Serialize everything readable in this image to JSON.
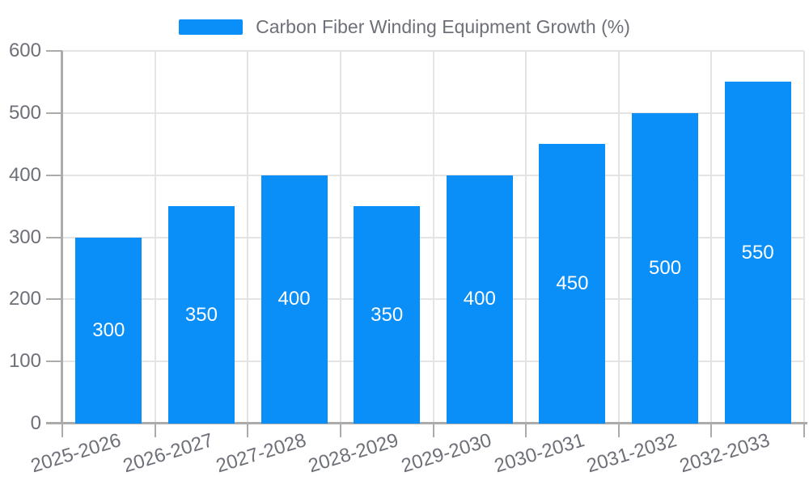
{
  "chart_data": {
    "type": "bar",
    "title": "Carbon Fiber Winding Equipment Growth (%)",
    "categories": [
      "2025-2026",
      "2026-2027",
      "2027-2028",
      "2028-2029",
      "2029-2030",
      "2030-2031",
      "2031-2032",
      "2032-2033"
    ],
    "series": [
      {
        "name": "Carbon Fiber Winding Equipment Growth (%)",
        "values": [
          300,
          350,
          400,
          350,
          400,
          450,
          500,
          550
        ]
      }
    ],
    "value_labels": [
      "300",
      "350",
      "400",
      "350",
      "400",
      "450",
      "500",
      "550"
    ],
    "xlabel": "",
    "ylabel": "",
    "ylim": [
      0,
      600
    ],
    "yticks": [
      0,
      100,
      200,
      300,
      400,
      500,
      600
    ],
    "grid": true,
    "vertical_gridlines": true,
    "legend_position": "top-center",
    "bar_value_labels_inside": true
  },
  "legend": {
    "label": "Carbon Fiber Winding Equipment Growth (%)"
  },
  "colors": {
    "bar": "#0a8ef8",
    "gridline": "#e4e4e4",
    "axis_line": "#ababab",
    "axis_text": "#6e7079",
    "bar_label_text": "#ffffff",
    "background": "#ffffff"
  }
}
